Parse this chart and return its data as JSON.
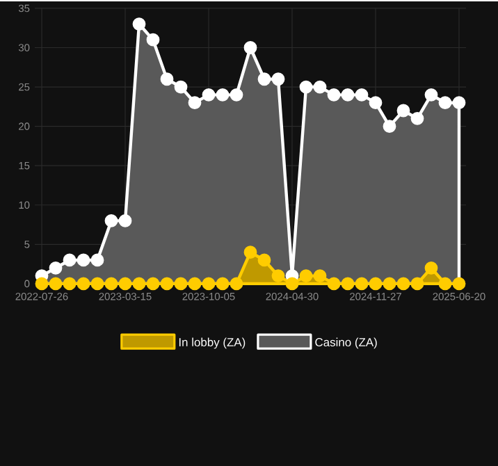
{
  "chart_data": {
    "type": "area",
    "categories": [
      "2022-07-26",
      null,
      null,
      null,
      null,
      null,
      "2023-03-15",
      null,
      null,
      null,
      null,
      null,
      "2023-10-05",
      null,
      null,
      null,
      null,
      null,
      "2024-04-30",
      null,
      null,
      null,
      null,
      null,
      "2024-11-27",
      null,
      null,
      null,
      null,
      null,
      "2025-06-20"
    ],
    "series": [
      {
        "name": "In lobby (ZA)",
        "color": "#ffcc00",
        "values": [
          0,
          0,
          0,
          0,
          0,
          0,
          0,
          0,
          0,
          0,
          0,
          0,
          0,
          0,
          0,
          4,
          3,
          1,
          0,
          1,
          1,
          0,
          0,
          0,
          0,
          0,
          0,
          0,
          2,
          0,
          0
        ]
      },
      {
        "name": "Casino (ZA)",
        "color": "#ffffff",
        "values": [
          1,
          2,
          3,
          3,
          3,
          8,
          8,
          33,
          31,
          26,
          25,
          23,
          24,
          24,
          24,
          30,
          26,
          26,
          1,
          25,
          25,
          24,
          24,
          24,
          23,
          20,
          22,
          21,
          24,
          23,
          23
        ]
      }
    ],
    "ylim": [
      0,
      35
    ],
    "yticks": [
      0,
      5,
      10,
      15,
      20,
      25,
      30,
      35
    ],
    "grid": true,
    "legend": "bottom",
    "marker": "circle"
  }
}
